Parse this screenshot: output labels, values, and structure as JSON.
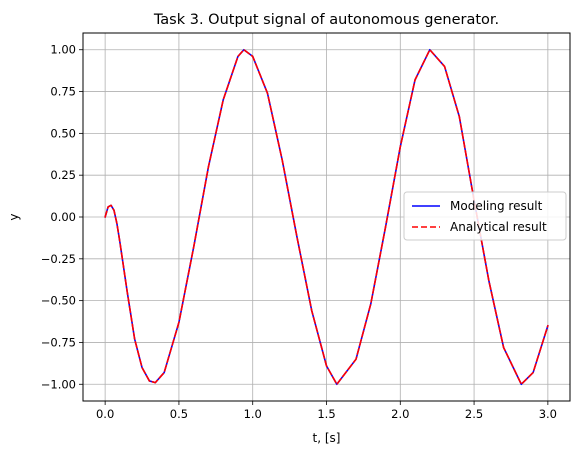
{
  "chart_data": {
    "type": "line",
    "title": "Task 3. Output signal of autonomous generator.",
    "xlabel": "t, [s]",
    "ylabel": "y",
    "xlim": [
      -0.15,
      3.15
    ],
    "ylim": [
      -1.1,
      1.1
    ],
    "xticks": [
      0.0,
      0.5,
      1.0,
      1.5,
      2.0,
      2.5,
      3.0
    ],
    "xtick_labels": [
      "0.0",
      "0.5",
      "1.0",
      "1.5",
      "2.0",
      "2.5",
      "3.0"
    ],
    "yticks": [
      1.0,
      0.75,
      0.5,
      0.25,
      0.0,
      -0.25,
      -0.5,
      -0.75,
      -1.0
    ],
    "ytick_labels": [
      "1.00",
      "0.75",
      "0.50",
      "0.25",
      "0.00",
      "−0.25",
      "−0.50",
      "−0.75",
      "−1.00"
    ],
    "grid": true,
    "legend_position": "center-right",
    "series": [
      {
        "name": "Modeling result",
        "color": "#0000ff",
        "style": "solid",
        "x": [
          0.0,
          0.02,
          0.04,
          0.06,
          0.08,
          0.1,
          0.15,
          0.2,
          0.25,
          0.3,
          0.34,
          0.4,
          0.5,
          0.6,
          0.7,
          0.8,
          0.9,
          0.94,
          1.0,
          1.1,
          1.2,
          1.3,
          1.4,
          1.5,
          1.57,
          1.7,
          1.8,
          1.9,
          2.0,
          2.1,
          2.2,
          2.3,
          2.4,
          2.5,
          2.6,
          2.7,
          2.82,
          2.9,
          3.0
        ],
        "y": [
          0.0,
          0.06,
          0.07,
          0.04,
          -0.04,
          -0.15,
          -0.45,
          -0.73,
          -0.9,
          -0.98,
          -0.99,
          -0.93,
          -0.63,
          -0.18,
          0.3,
          0.7,
          0.96,
          1.0,
          0.96,
          0.74,
          0.34,
          -0.12,
          -0.56,
          -0.89,
          -1.0,
          -0.85,
          -0.52,
          -0.06,
          0.42,
          0.82,
          1.0,
          0.9,
          0.6,
          0.1,
          -0.38,
          -0.78,
          -1.0,
          -0.93,
          -0.65
        ]
      },
      {
        "name": "Analytical result",
        "color": "#ff0000",
        "style": "dashed",
        "x": [
          0.0,
          0.02,
          0.04,
          0.06,
          0.08,
          0.1,
          0.15,
          0.2,
          0.25,
          0.3,
          0.34,
          0.4,
          0.5,
          0.6,
          0.7,
          0.8,
          0.9,
          0.94,
          1.0,
          1.1,
          1.2,
          1.3,
          1.4,
          1.5,
          1.57,
          1.7,
          1.8,
          1.9,
          2.0,
          2.1,
          2.2,
          2.3,
          2.4,
          2.5,
          2.6,
          2.7,
          2.82,
          2.9,
          3.0
        ],
        "y": [
          0.0,
          0.06,
          0.07,
          0.04,
          -0.04,
          -0.15,
          -0.45,
          -0.73,
          -0.9,
          -0.98,
          -0.99,
          -0.93,
          -0.63,
          -0.18,
          0.3,
          0.7,
          0.96,
          1.0,
          0.96,
          0.74,
          0.34,
          -0.12,
          -0.56,
          -0.89,
          -1.0,
          -0.85,
          -0.52,
          -0.06,
          0.42,
          0.82,
          1.0,
          0.9,
          0.6,
          0.1,
          -0.38,
          -0.78,
          -1.0,
          -0.93,
          -0.65
        ]
      }
    ]
  }
}
